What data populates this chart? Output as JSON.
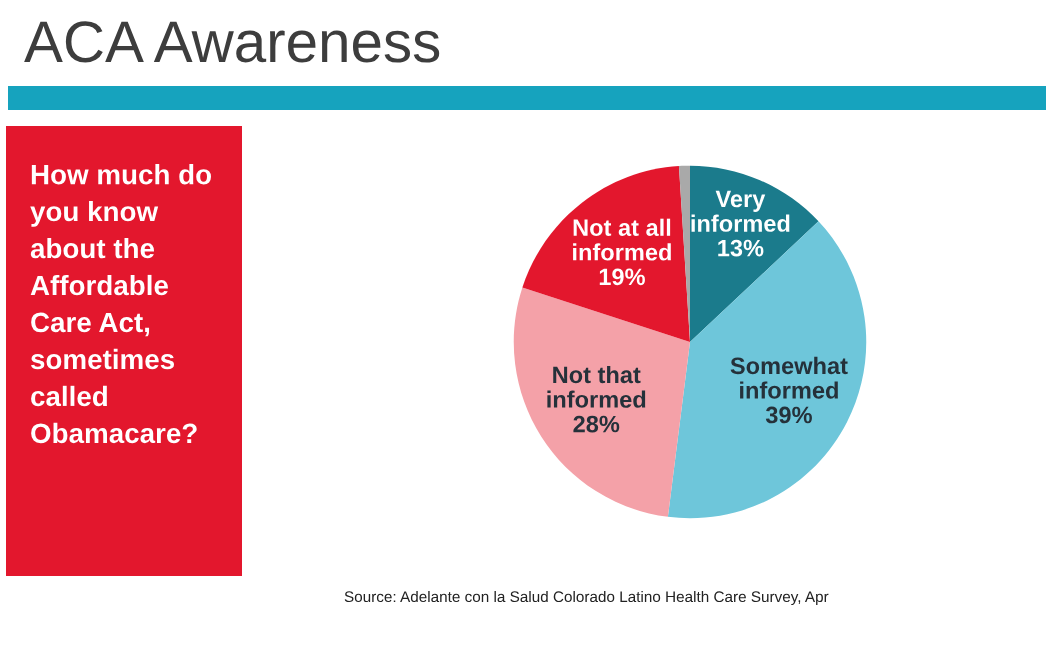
{
  "chart_data": {
    "type": "pie",
    "title": "ACA Awareness",
    "subtitle": "How much do you know about the Affordable Care Act, sometimes called Obamacare?",
    "categories": [
      "Very informed",
      "Somewhat informed",
      "Not that informed",
      "Not at all informed",
      null
    ],
    "values": [
      13,
      39,
      28,
      19,
      1
    ],
    "colors": [
      "#1b7b8c",
      "#6ec6da",
      "#f4a1a8",
      "#e3172d",
      "#a9a9a9"
    ],
    "value_labels": [
      "13%",
      "39%",
      "28%",
      "19%",
      null
    ],
    "annotations": [
      "Source: Adelante con la Salud Colorado Latino Health Care Survey, Apr"
    ]
  }
}
